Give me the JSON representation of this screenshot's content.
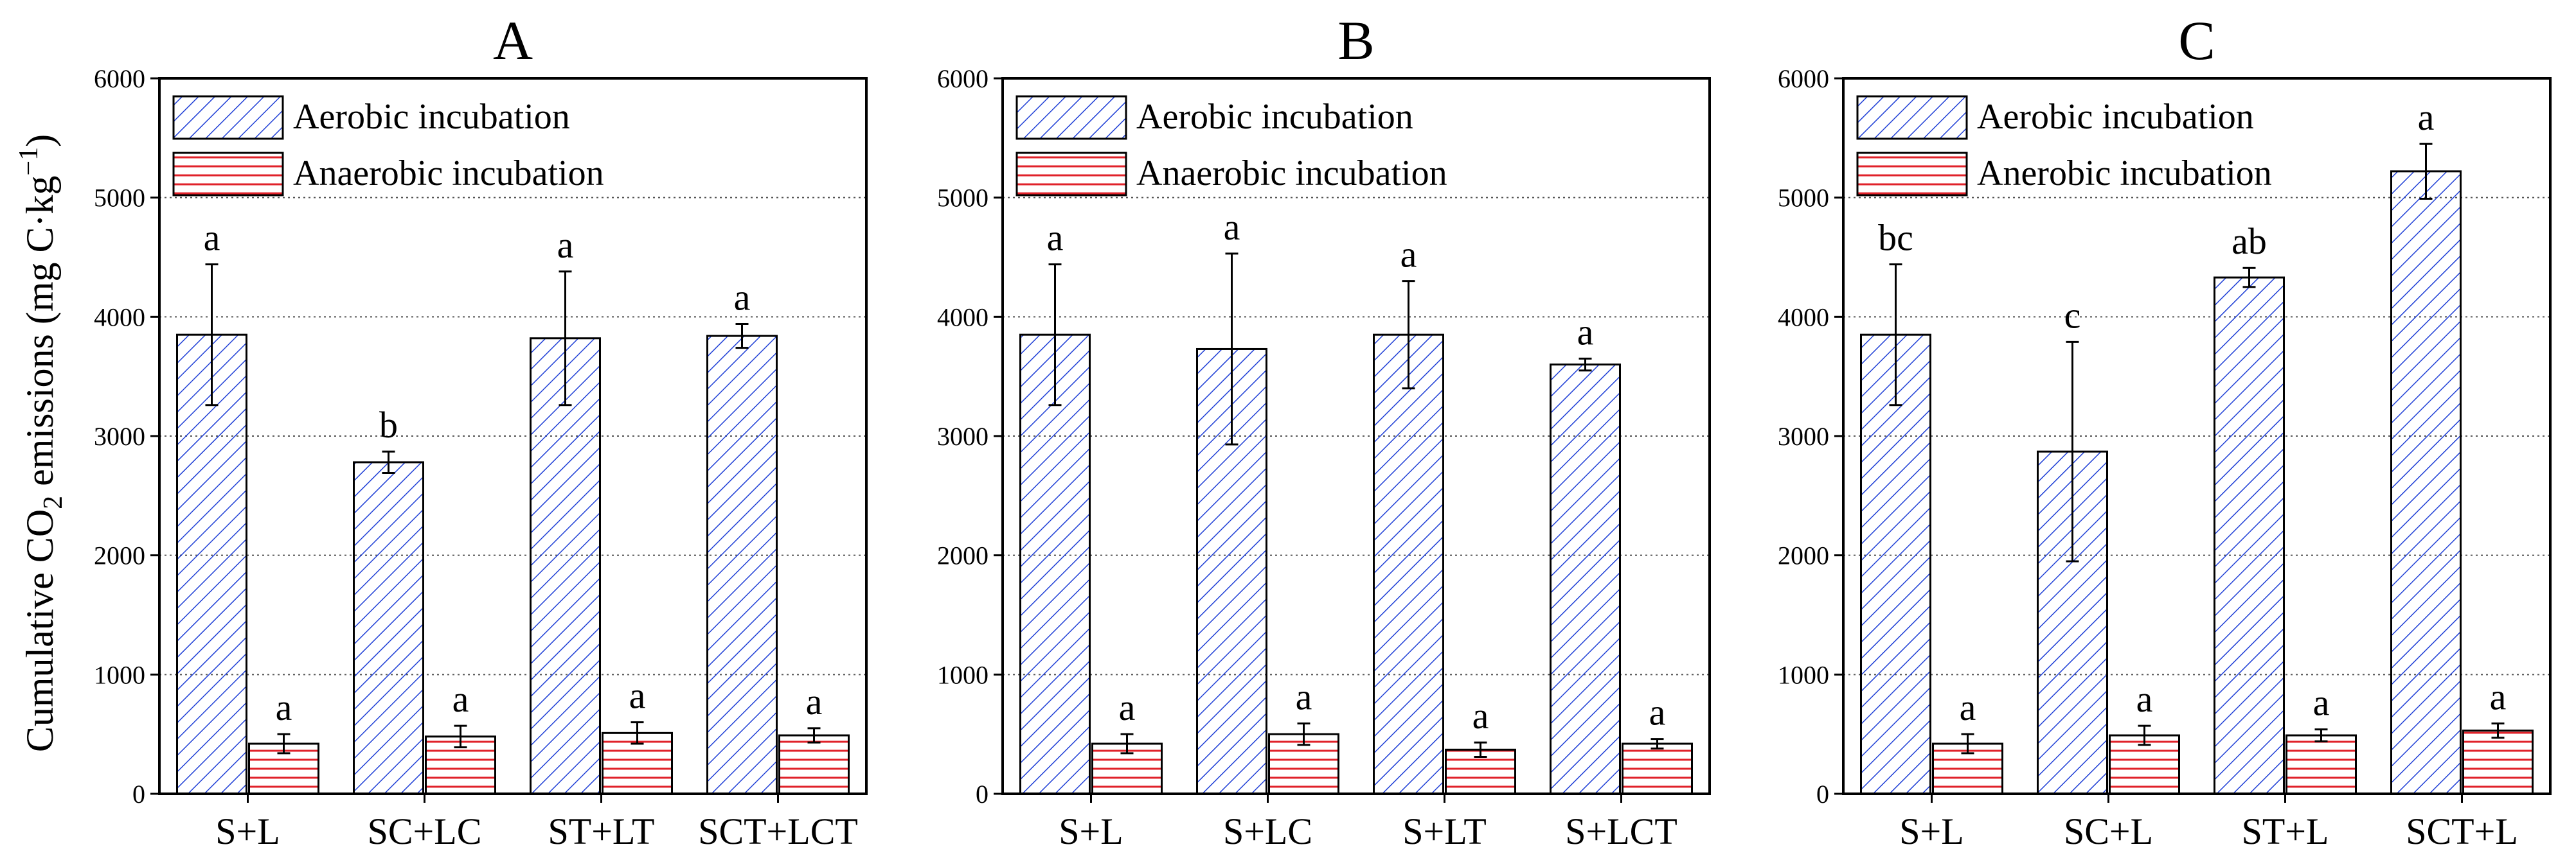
{
  "ylabel": {
    "prefix": "Cumulative CO",
    "sub": "2",
    "middle": " emissions (mg C·kg",
    "sup": "−1",
    "suffix": ")"
  },
  "colors": {
    "aerobic": "#1f3fd6",
    "anaerobic": "#e0222a",
    "grid": "#555555",
    "axis": "#000000"
  },
  "chart_data": [
    {
      "panel": "A",
      "type": "bar",
      "title": "A",
      "categories": [
        "S+L",
        "SC+LC",
        "ST+LT",
        "SCT+LCT"
      ],
      "ylim": [
        0,
        6000
      ],
      "yticks": [
        0,
        1000,
        2000,
        3000,
        4000,
        5000,
        6000
      ],
      "grid": true,
      "legend_position": "top-left",
      "series": [
        {
          "name": "Aerobic incubation",
          "key": "aerobic",
          "values": [
            3850,
            2780,
            3820,
            3840
          ],
          "errors": [
            590,
            90,
            560,
            100
          ],
          "letters": [
            "a",
            "b",
            "a",
            "a"
          ]
        },
        {
          "name": "Anaerobic incubation",
          "key": "anaerobic",
          "values": [
            420,
            480,
            510,
            490
          ],
          "errors": [
            80,
            90,
            90,
            60
          ],
          "letters": [
            "a",
            "a",
            "a",
            "a"
          ]
        }
      ]
    },
    {
      "panel": "B",
      "type": "bar",
      "title": "B",
      "categories": [
        "S+L",
        "S+LC",
        "S+LT",
        "S+LCT"
      ],
      "ylim": [
        0,
        6000
      ],
      "yticks": [
        0,
        1000,
        2000,
        3000,
        4000,
        5000,
        6000
      ],
      "grid": true,
      "legend_position": "top-left",
      "series": [
        {
          "name": "Aerobic incubation",
          "key": "aerobic",
          "values": [
            3850,
            3730,
            3850,
            3600
          ],
          "errors": [
            590,
            800,
            450,
            50
          ],
          "letters": [
            "a",
            "a",
            "a",
            "a"
          ]
        },
        {
          "name": "Anaerobic incubation",
          "key": "anaerobic",
          "values": [
            420,
            500,
            370,
            420
          ],
          "errors": [
            80,
            90,
            60,
            40
          ],
          "letters": [
            "a",
            "a",
            "a",
            "a"
          ]
        }
      ]
    },
    {
      "panel": "C",
      "type": "bar",
      "title": "C",
      "categories": [
        "S+L",
        "SC+L",
        "ST+L",
        "SCT+L"
      ],
      "ylim": [
        0,
        6000
      ],
      "yticks": [
        0,
        1000,
        2000,
        3000,
        4000,
        5000,
        6000
      ],
      "grid": true,
      "legend_position": "top-left",
      "series": [
        {
          "name": "Aerobic incubation",
          "key": "aerobic",
          "values": [
            3850,
            2870,
            4330,
            5220
          ],
          "errors": [
            590,
            920,
            80,
            230
          ],
          "letters": [
            "bc",
            "c",
            "ab",
            "a"
          ]
        },
        {
          "name": "Anerobic incubation",
          "key": "anaerobic",
          "values": [
            420,
            490,
            490,
            530
          ],
          "errors": [
            80,
            80,
            50,
            60
          ],
          "letters": [
            "a",
            "a",
            "a",
            "a"
          ]
        }
      ]
    }
  ]
}
